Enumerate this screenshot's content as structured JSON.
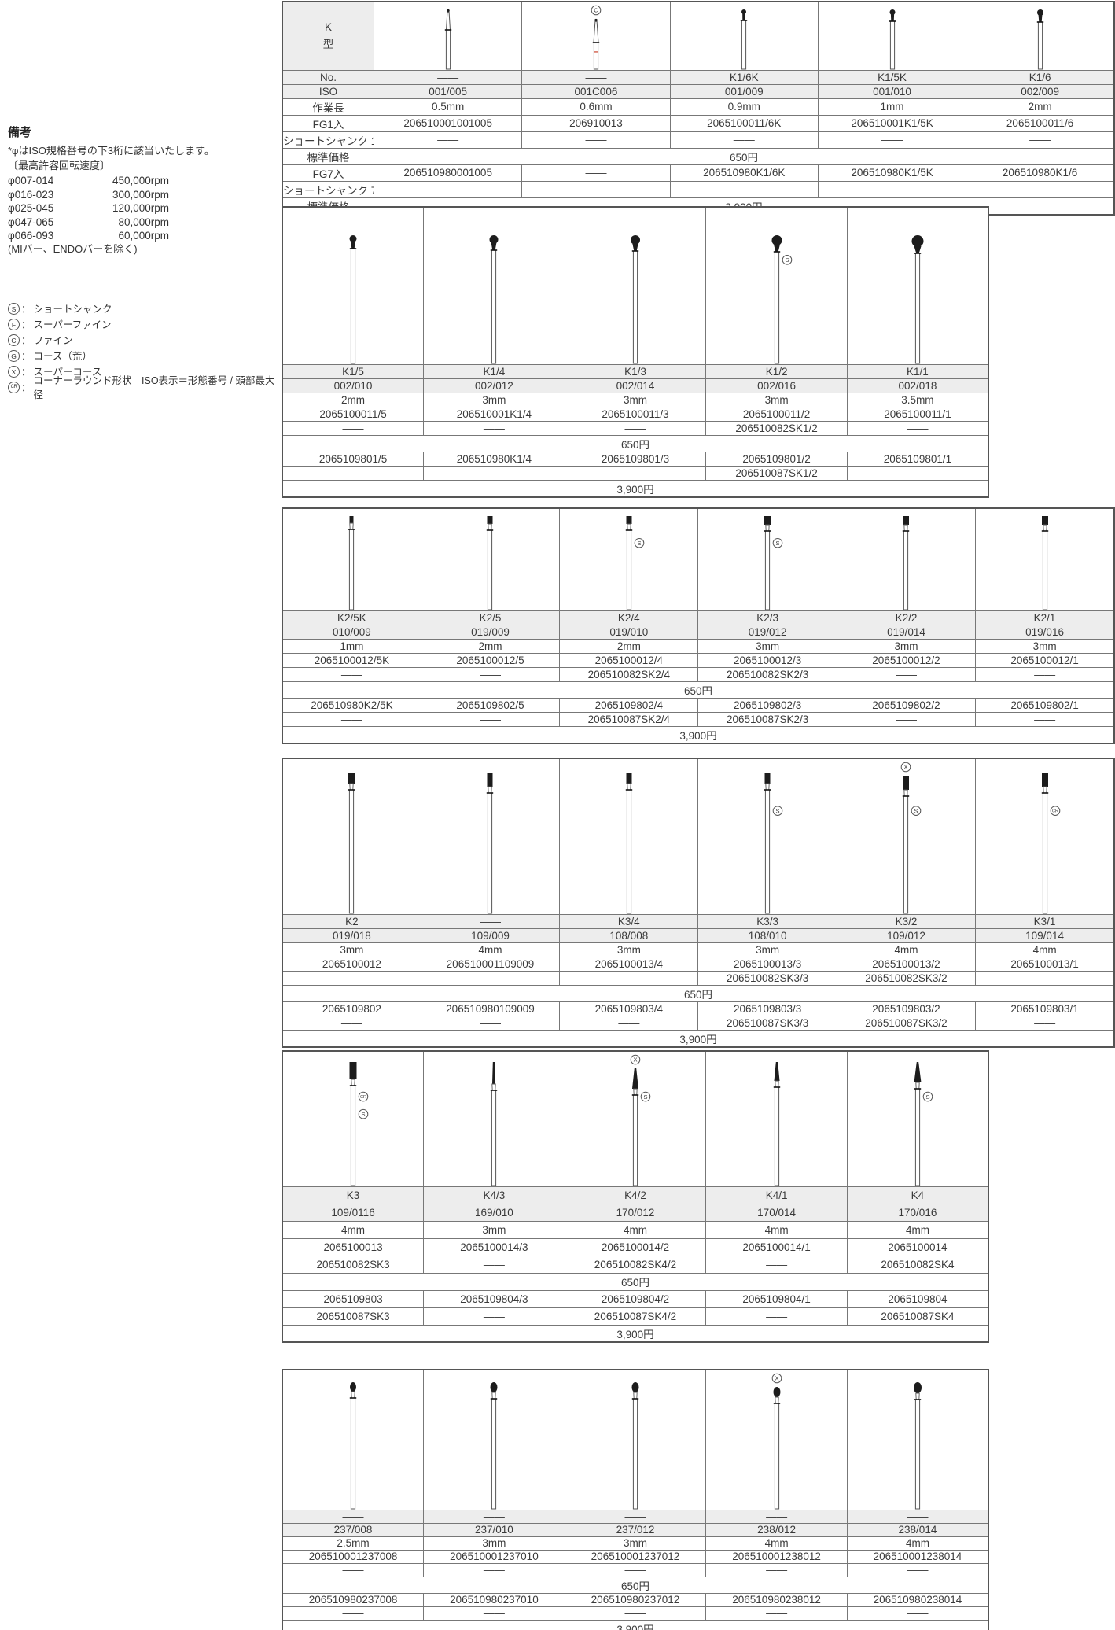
{
  "notes": {
    "title": "備考",
    "iso_note": "*φはISO規格番号の下3桁に該当いたします。",
    "speed_title": "〔最高許容回転速度〕",
    "speeds": [
      {
        "range": "φ007-014",
        "rpm": "450,000rpm"
      },
      {
        "range": "φ016-023",
        "rpm": "300,000rpm"
      },
      {
        "range": "φ025-045",
        "rpm": "120,000rpm"
      },
      {
        "range": "φ047-065",
        "rpm": "80,000rpm"
      },
      {
        "range": "φ066-093",
        "rpm": "60,000rpm"
      }
    ],
    "speed_note": "(MIバー、ENDOバーを除く)",
    "colon": "：",
    "legend": [
      {
        "symbol": "S",
        "text": "ショートシャンク"
      },
      {
        "symbol": "F",
        "text": "スーパーファイン"
      },
      {
        "symbol": "C",
        "text": "ファイン"
      },
      {
        "symbol": "G",
        "text": "コース（荒）"
      },
      {
        "symbol": "X",
        "text": "スーパーコース"
      },
      {
        "symbol": "CR",
        "text": "コーナーラウンド形状　ISO表示＝形態番号 / 頭部最大径"
      }
    ]
  },
  "labels": {
    "type_header": "K\n型",
    "no": "No.",
    "iso": "ISO",
    "length": "作業長",
    "fg1": "FG1入",
    "ss1": "ショートシャンク 1入",
    "price": "標準価格",
    "fg7": "FG7入",
    "ss7": "ショートシャンク 7入"
  },
  "prices": {
    "single": "650円",
    "pack7": "3,900円"
  },
  "colors": {
    "code_blue": "#2a73b8",
    "header_gray": "#ededed",
    "band_red": "#dc8374"
  },
  "tables": [
    {
      "name": "K-type small round burs",
      "label_column": true,
      "columns": [
        {
          "no": "——",
          "iso": "001/005",
          "len": "0.5mm",
          "fg1": "206510001001005",
          "ss1": "——",
          "fg7": "206510980001005",
          "ss7": "——",
          "icon": {
            "head": "cone-dot",
            "hw": 5,
            "hh": 26
          }
        },
        {
          "no": "——",
          "iso": "001C006",
          "len": "0.6mm",
          "fg1": "206910013",
          "ss1": "——",
          "fg7": "——",
          "ss7": "——",
          "icon": {
            "head": "cone-dot",
            "hw": 6,
            "hh": 30,
            "top": "C",
            "band": true
          }
        },
        {
          "no": "K1/6K",
          "iso": "001/009",
          "len": "0.9mm",
          "fg1": "2065100011/6K",
          "ss1": "——",
          "fg7": "206510980K1/6K",
          "ss7": "——",
          "icon": {
            "head": "ball",
            "hw": 6,
            "hh": 6
          }
        },
        {
          "no": "K1/5K",
          "iso": "001/010",
          "len": "1mm",
          "fg1": "206510001K1/5K",
          "ss1": "——",
          "fg7": "206510980K1/5K",
          "ss7": "——",
          "icon": {
            "head": "ball",
            "hw": 7,
            "hh": 7
          }
        },
        {
          "no": "K1/6",
          "iso": "002/009",
          "len": "2mm",
          "fg1": "2065100011/6",
          "ss1": "——",
          "fg7": "206510980K1/6",
          "ss7": "——",
          "icon": {
            "head": "ball",
            "hw": 8,
            "hh": 8
          }
        }
      ]
    },
    {
      "name": "K1 round burs",
      "label_column": false,
      "columns": [
        {
          "no": "K1/5",
          "iso": "002/010",
          "len": "2mm",
          "fg1": "2065100011/5",
          "ss1": "——",
          "fg7": "2065109801/5",
          "ss7": "——",
          "icon": {
            "head": "ball",
            "hw": 9,
            "hh": 9,
            "hy": 34
          }
        },
        {
          "no": "K1/4",
          "iso": "002/012",
          "len": "3mm",
          "fg1": "206510001K1/4",
          "ss1": "——",
          "fg7": "206510980K1/4",
          "ss7": "——",
          "icon": {
            "head": "ball",
            "hw": 11,
            "hh": 11,
            "hy": 34
          }
        },
        {
          "no": "K1/3",
          "iso": "002/014",
          "len": "3mm",
          "fg1": "2065100011/3",
          "ss1": "——",
          "fg7": "2065109801/3",
          "ss7": "——",
          "icon": {
            "head": "ball",
            "hw": 12,
            "hh": 12,
            "hy": 34
          }
        },
        {
          "no": "K1/2",
          "iso": "002/016",
          "len": "3mm",
          "fg1": "2065100011/2",
          "ss1": "206510082SK1/2",
          "fg7": "2065109801/2",
          "ss7": "206510087SK1/2",
          "icon": {
            "head": "ball",
            "hw": 13,
            "hh": 13,
            "hy": 34,
            "side": [
              "S"
            ]
          }
        },
        {
          "no": "K1/1",
          "iso": "002/018",
          "len": "3.5mm",
          "fg1": "2065100011/1",
          "ss1": "——",
          "fg7": "2065109801/1",
          "ss7": "——",
          "icon": {
            "head": "ball",
            "hw": 15,
            "hh": 15,
            "hy": 34
          }
        }
      ]
    },
    {
      "name": "K2 inverted cone burs",
      "label_column": false,
      "columns": [
        {
          "no": "K2/5K",
          "iso": "010/009",
          "len": "1mm",
          "fg1": "2065100012/5K",
          "ss1": "——",
          "fg7": "206510980K2/5K",
          "ss7": "——",
          "icon": {
            "head": "rect",
            "hw": 5,
            "hh": 9
          }
        },
        {
          "no": "K2/5",
          "iso": "019/009",
          "len": "2mm",
          "fg1": "2065100012/5",
          "ss1": "——",
          "fg7": "2065109802/5",
          "ss7": "——",
          "icon": {
            "head": "rect",
            "hw": 7,
            "hh": 10
          }
        },
        {
          "no": "K2/4",
          "iso": "019/010",
          "len": "2mm",
          "fg1": "2065100012/4",
          "ss1": "206510082SK2/4",
          "fg7": "2065109802/4",
          "ss7": "206510087SK2/4",
          "icon": {
            "head": "rect",
            "hw": 7,
            "hh": 10,
            "side": [
              "S"
            ]
          }
        },
        {
          "no": "K2/3",
          "iso": "019/012",
          "len": "3mm",
          "fg1": "2065100012/3",
          "ss1": "206510082SK2/3",
          "fg7": "2065109802/3",
          "ss7": "206510087SK2/3",
          "icon": {
            "head": "rect",
            "hw": 8,
            "hh": 11,
            "side": [
              "S"
            ]
          }
        },
        {
          "no": "K2/2",
          "iso": "019/014",
          "len": "3mm",
          "fg1": "2065100012/2",
          "ss1": "——",
          "fg7": "2065109802/2",
          "ss7": "——",
          "icon": {
            "head": "rect",
            "hw": 8,
            "hh": 11
          }
        },
        {
          "no": "K2/1",
          "iso": "019/016",
          "len": "3mm",
          "fg1": "2065100012/1",
          "ss1": "——",
          "fg7": "2065109802/1",
          "ss7": "——",
          "icon": {
            "head": "rect",
            "hw": 8,
            "hh": 11
          }
        }
      ]
    },
    {
      "name": "K2-K3 cylinder burs",
      "label_column": false,
      "columns": [
        {
          "no": "K2",
          "iso": "019/018",
          "len": "3mm",
          "fg1": "2065100012",
          "ss1": "——",
          "fg7": "2065109802",
          "ss7": "——",
          "icon": {
            "head": "rect",
            "hw": 8,
            "hh": 14,
            "hy": 16
          }
        },
        {
          "no": "——",
          "iso": "109/009",
          "len": "4mm",
          "fg1": "206510001109009",
          "ss1": "——",
          "fg7": "206510980109009",
          "ss7": "——",
          "icon": {
            "head": "rect",
            "hw": 7,
            "hh": 18,
            "hy": 16
          }
        },
        {
          "no": "K3/4",
          "iso": "108/008",
          "len": "3mm",
          "fg1": "2065100013/4",
          "ss1": "——",
          "fg7": "2065109803/4",
          "ss7": "——",
          "icon": {
            "head": "rect",
            "hw": 7,
            "hh": 14,
            "hy": 16
          }
        },
        {
          "no": "K3/3",
          "iso": "108/010",
          "len": "3mm",
          "fg1": "2065100013/3",
          "ss1": "206510082SK3/3",
          "fg7": "2065109803/3",
          "ss7": "206510087SK3/3",
          "icon": {
            "head": "rect",
            "hw": 7,
            "hh": 14,
            "hy": 16,
            "side": [
              "S"
            ]
          }
        },
        {
          "no": "K3/2",
          "iso": "109/012",
          "len": "4mm",
          "fg1": "2065100013/2",
          "ss1": "206510082SK3/2",
          "fg7": "2065109803/2",
          "ss7": "206510087SK3/2",
          "icon": {
            "head": "rect",
            "hw": 8,
            "hh": 18,
            "top": "X",
            "side": [
              "S"
            ]
          }
        },
        {
          "no": "K3/1",
          "iso": "109/014",
          "len": "4mm",
          "fg1": "2065100013/1",
          "ss1": "——",
          "fg7": "2065109803/1",
          "ss7": "——",
          "icon": {
            "head": "rect",
            "hw": 8,
            "hh": 18,
            "hy": 16,
            "side": [
              "CR"
            ]
          }
        }
      ]
    },
    {
      "name": "K3-K4 taper burs",
      "label_column": false,
      "columns": [
        {
          "no": "K3",
          "iso": "109/0116",
          "len": "4mm",
          "fg1": "2065100013",
          "ss1": "206510082SK3",
          "fg7": "2065109803",
          "ss7": "206510087SK3",
          "icon": {
            "head": "rect",
            "hw": 9,
            "hh": 22,
            "hy": 12,
            "side": [
              "CR",
              "S"
            ]
          }
        },
        {
          "no": "K4/3",
          "iso": "169/010",
          "len": "3mm",
          "fg1": "2065100014/3",
          "ss1": "——",
          "fg7": "2065109804/3",
          "ss7": "——",
          "icon": {
            "head": "cone",
            "hw": 4,
            "hh": 28,
            "hy": 12
          }
        },
        {
          "no": "K4/2",
          "iso": "170/012",
          "len": "4mm",
          "fg1": "2065100014/2",
          "ss1": "206510082SK4/2",
          "fg7": "2065109804/2",
          "ss7": "206510087SK4/2",
          "icon": {
            "head": "cone",
            "hw": 8,
            "hh": 26,
            "top": "X",
            "side": [
              "S"
            ]
          }
        },
        {
          "no": "K4/1",
          "iso": "170/014",
          "len": "4mm",
          "fg1": "2065100014/1",
          "ss1": "——",
          "fg7": "2065109804/1",
          "ss7": "——",
          "icon": {
            "head": "cone",
            "hw": 7,
            "hh": 24,
            "hy": 12
          }
        },
        {
          "no": "K4",
          "iso": "170/016",
          "len": "4mm",
          "fg1": "2065100014",
          "ss1": "206510082SK4",
          "fg7": "2065109804",
          "ss7": "206510087SK4",
          "icon": {
            "head": "cone",
            "hw": 9,
            "hh": 26,
            "hy": 12,
            "side": [
              "S"
            ]
          }
        }
      ]
    },
    {
      "name": "237-238 pear burs",
      "label_column": false,
      "columns": [
        {
          "no": "——",
          "iso": "237/008",
          "len": "2.5mm",
          "fg1": "206510001237008",
          "ss1": "——",
          "fg7": "206510980237008",
          "ss7": "——",
          "icon": {
            "head": "pear",
            "hw": 8,
            "hh": 12,
            "hy": 14
          }
        },
        {
          "no": "——",
          "iso": "237/010",
          "len": "3mm",
          "fg1": "206510001237010",
          "ss1": "——",
          "fg7": "206510980237010",
          "ss7": "——",
          "icon": {
            "head": "pear",
            "hw": 9,
            "hh": 13,
            "hy": 14
          }
        },
        {
          "no": "——",
          "iso": "237/012",
          "len": "3mm",
          "fg1": "206510001237012",
          "ss1": "——",
          "fg7": "206510980237012",
          "ss7": "——",
          "icon": {
            "head": "pear",
            "hw": 9,
            "hh": 13,
            "hy": 14
          }
        },
        {
          "no": "——",
          "iso": "238/012",
          "len": "4mm",
          "fg1": "206510001238012",
          "ss1": "——",
          "fg7": "206510980238012",
          "ss7": "——",
          "icon": {
            "head": "pear",
            "hw": 9,
            "hh": 13,
            "top": "X"
          }
        },
        {
          "no": "——",
          "iso": "238/014",
          "len": "4mm",
          "fg1": "206510001238014",
          "ss1": "——",
          "fg7": "206510980238014",
          "ss7": "——",
          "icon": {
            "head": "pear",
            "hw": 10,
            "hh": 14,
            "hy": 14
          }
        }
      ]
    }
  ]
}
